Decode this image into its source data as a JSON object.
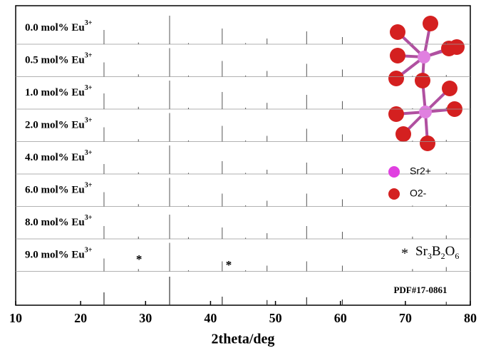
{
  "chart_data": {
    "type": "xrd-stack",
    "x_label": "2theta/deg",
    "xlim": [
      10,
      80
    ],
    "xticks": [
      10,
      20,
      30,
      40,
      50,
      60,
      70,
      80
    ],
    "x": [
      23.6,
      28.9,
      33.7,
      36.6,
      41.8,
      45.4,
      48.7,
      54.8,
      60.3,
      71.1,
      76.3
    ],
    "series": [
      {
        "name": "0.0 mol% Eu",
        "sup": "3+",
        "color": "#555555",
        "values": [
          0.5,
          0.06,
          1.0,
          0.04,
          0.55,
          0.04,
          0.2,
          0.45,
          0.25,
          0.03,
          0.06
        ]
      },
      {
        "name": "0.5 mol% Eu",
        "sup": "3+",
        "color": "#555555",
        "values": [
          0.5,
          0.08,
          1.0,
          0.04,
          0.55,
          0.04,
          0.2,
          0.45,
          0.25,
          0.03,
          0.06
        ]
      },
      {
        "name": "1.0 mol% Eu",
        "sup": "3+",
        "color": "#555555",
        "values": [
          0.55,
          0.08,
          1.0,
          0.05,
          0.6,
          0.05,
          0.22,
          0.5,
          0.28,
          0.03,
          0.06
        ]
      },
      {
        "name": "2.0 mol% Eu",
        "sup": "3+",
        "color": "#555555",
        "values": [
          0.5,
          0.08,
          1.0,
          0.04,
          0.55,
          0.04,
          0.2,
          0.45,
          0.25,
          0.03,
          0.06
        ]
      },
      {
        "name": "4.0 mol% Eu",
        "sup": "3+",
        "color": "#555555",
        "values": [
          0.35,
          0.06,
          1.0,
          0.04,
          0.45,
          0.04,
          0.15,
          0.4,
          0.2,
          0.03,
          0.05
        ]
      },
      {
        "name": "6.0 mol% Eu",
        "sup": "3+",
        "color": "#555555",
        "values": [
          0.5,
          0.08,
          1.0,
          0.04,
          0.45,
          0.04,
          0.2,
          0.45,
          0.25,
          0.03,
          0.06
        ]
      },
      {
        "name": "8.0 mol% Eu",
        "sup": "3+",
        "color": "#555555",
        "values": [
          0.45,
          0.08,
          0.85,
          0.06,
          0.4,
          0.04,
          0.2,
          0.45,
          0.25,
          0.08,
          0.12
        ]
      },
      {
        "name": "9.0 mol% Eu",
        "sup": "3+",
        "color": "#555555",
        "values": [
          0.45,
          0.08,
          1.0,
          0.04,
          0.35,
          0.04,
          0.2,
          0.35,
          0.2,
          0.08,
          0.15
        ]
      },
      {
        "name": "PDF#17-0861",
        "color": "#333333",
        "values": [
          0.45,
          0.0,
          1.0,
          0.0,
          0.3,
          0.0,
          0.18,
          0.28,
          0.2,
          0.0,
          0.12
        ]
      }
    ],
    "annotations": [
      {
        "text": "*",
        "x": 29.0
      },
      {
        "text": "*",
        "x": 42.8
      }
    ],
    "phase_label": {
      "marker": "*",
      "parts": [
        "Sr",
        "3",
        "B",
        "2",
        "O",
        "6"
      ]
    },
    "structure_legend": [
      {
        "label": "Sr2+",
        "color": "#e040e0"
      },
      {
        "label": "O2-",
        "color": "#d42020"
      }
    ]
  }
}
